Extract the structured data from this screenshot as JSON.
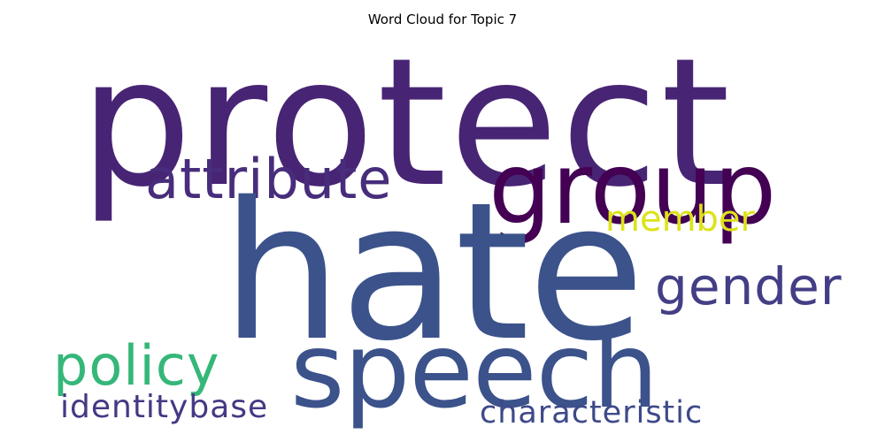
{
  "title": "Word Cloud for Topic 7",
  "words": {
    "protect": {
      "text": "protect",
      "color": "#482474"
    },
    "hate": {
      "text": "hate",
      "color": "#3b528b"
    },
    "group": {
      "text": "group",
      "color": "#440154"
    },
    "attribute": {
      "text": "attribute",
      "color": "#472d7b"
    },
    "member": {
      "text": "member",
      "color": "#dde318"
    },
    "gender": {
      "text": "gender",
      "color": "#433e85"
    },
    "speech": {
      "text": "speech",
      "color": "#3b528b"
    },
    "policy": {
      "text": "policy",
      "color": "#35b779"
    },
    "identitybase": {
      "text": "identitybase",
      "color": "#443983"
    },
    "characteristic": {
      "text": "characteristic",
      "color": "#3e4989"
    }
  }
}
